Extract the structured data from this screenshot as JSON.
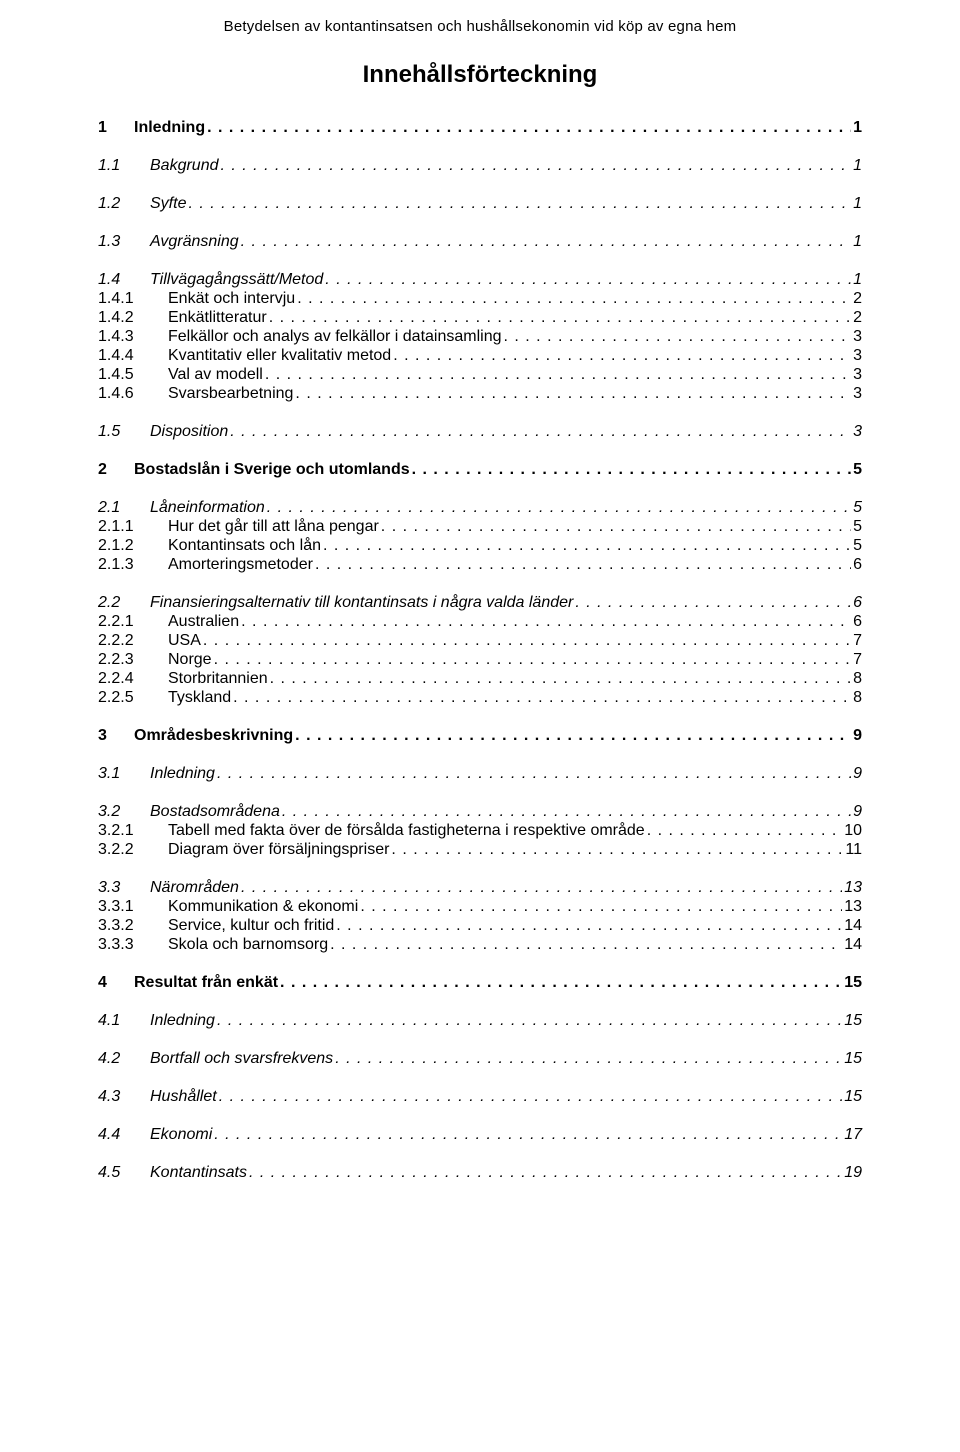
{
  "running_header": "Betydelsen av  kontantinsatsen och hushållsekonomin vid köp av egna hem",
  "toc_title": "Innehållsförteckning",
  "leader_char": ". . . . . . . . . . . . . . . . . . . . . . . . . . . . . . . . . . . . . . . . . . . . . . . . . . . . . . . . . . . . . . . . . . . . . . . . . . . . . . . . . . . . . . . . . . . . . . . . . . . . . . . . . . . . . . . . . . . . . . . . . . . . . . . . . . . . . . . . . . . . . .",
  "entries": [
    {
      "level": 1,
      "num": "1",
      "label": "Inledning",
      "page": "1"
    },
    {
      "level": 2,
      "num": "1.1",
      "label": "Bakgrund",
      "page": "1"
    },
    {
      "level": 2,
      "num": "1.2",
      "label": "Syfte",
      "page": "1"
    },
    {
      "level": 2,
      "num": "1.3",
      "label": "Avgränsning",
      "page": "1"
    },
    {
      "level": 2,
      "num": "1.4",
      "label": "Tillvägagångssätt/Metod",
      "page": "1"
    },
    {
      "level": 3,
      "num": "1.4.1",
      "label": "Enkät och intervju",
      "page": "2"
    },
    {
      "level": 3,
      "num": "1.4.2",
      "label": "Enkätlitteratur",
      "page": "2"
    },
    {
      "level": 3,
      "num": "1.4.3",
      "label": "Felkällor och analys av felkällor i datainsamling",
      "page": "3"
    },
    {
      "level": 3,
      "num": "1.4.4",
      "label": "Kvantitativ eller kvalitativ metod",
      "page": "3"
    },
    {
      "level": 3,
      "num": "1.4.5",
      "label": "Val av modell",
      "page": "3"
    },
    {
      "level": 3,
      "num": "1.4.6",
      "label": "Svarsbearbetning",
      "page": "3"
    },
    {
      "level": 2,
      "num": "1.5",
      "label": "Disposition",
      "page": "3"
    },
    {
      "level": 1,
      "num": "2",
      "label": "Bostadslån i Sverige och utomlands",
      "page": "5"
    },
    {
      "level": 2,
      "num": "2.1",
      "label": "Låneinformation",
      "page": "5"
    },
    {
      "level": 3,
      "num": "2.1.1",
      "label": "Hur det går till att låna pengar",
      "page": "5"
    },
    {
      "level": 3,
      "num": "2.1.2",
      "label": "Kontantinsats och lån",
      "page": "5"
    },
    {
      "level": 3,
      "num": "2.1.3",
      "label": "Amorteringsmetoder",
      "page": "6"
    },
    {
      "level": 2,
      "num": "2.2",
      "label": "Finansieringsalternativ till kontantinsats i några valda länder",
      "page": "6"
    },
    {
      "level": 3,
      "num": "2.2.1",
      "label": "Australien",
      "page": "6"
    },
    {
      "level": 3,
      "num": "2.2.2",
      "label": "USA",
      "page": "7"
    },
    {
      "level": 3,
      "num": "2.2.3",
      "label": "Norge",
      "page": "7"
    },
    {
      "level": 3,
      "num": "2.2.4",
      "label": "Storbritannien",
      "page": "8"
    },
    {
      "level": 3,
      "num": "2.2.5",
      "label": "Tyskland",
      "page": "8"
    },
    {
      "level": 1,
      "num": "3",
      "label": "Områdesbeskrivning",
      "page": "9"
    },
    {
      "level": 2,
      "num": "3.1",
      "label": "Inledning",
      "page": "9"
    },
    {
      "level": 2,
      "num": "3.2",
      "label": "Bostadsområdena",
      "page": "9"
    },
    {
      "level": 3,
      "num": "3.2.1",
      "label": "Tabell med fakta över de försålda fastigheterna i respektive område",
      "page": "10"
    },
    {
      "level": 3,
      "num": "3.2.2",
      "label": "Diagram över försäljningspriser",
      "page": "11"
    },
    {
      "level": 2,
      "num": "3.3",
      "label": "Närområden",
      "page": "13"
    },
    {
      "level": 3,
      "num": "3.3.1",
      "label": "Kommunikation & ekonomi",
      "page": "13"
    },
    {
      "level": 3,
      "num": "3.3.2",
      "label": "Service, kultur och fritid",
      "page": "14"
    },
    {
      "level": 3,
      "num": "3.3.3",
      "label": "Skola och barnomsorg",
      "page": "14"
    },
    {
      "level": 1,
      "num": "4",
      "label": "Resultat från enkät",
      "page": "15"
    },
    {
      "level": 2,
      "num": "4.1",
      "label": "Inledning",
      "page": "15"
    },
    {
      "level": 2,
      "num": "4.2",
      "label": "Bortfall och svarsfrekvens",
      "page": "15"
    },
    {
      "level": 2,
      "num": "4.3",
      "label": "Hushållet",
      "page": "15"
    },
    {
      "level": 2,
      "num": "4.4",
      "label": "Ekonomi",
      "page": "17"
    },
    {
      "level": 2,
      "num": "4.5",
      "label": "Kontantinsats",
      "page": "19"
    }
  ]
}
